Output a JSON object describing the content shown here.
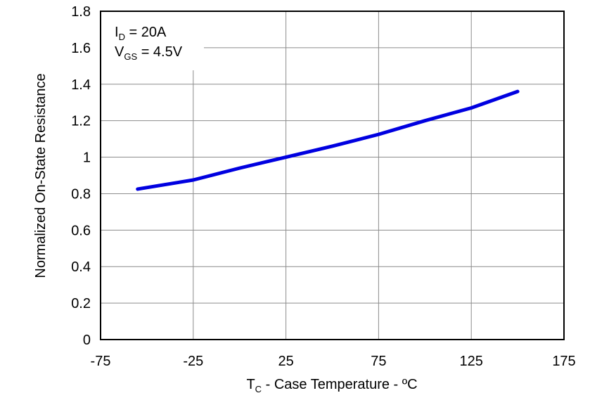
{
  "chart_data": {
    "type": "line",
    "annotations": [
      {
        "main": "I",
        "sub": "D",
        "rest": " = 20A"
      },
      {
        "main": "V",
        "sub": "GS",
        "rest": " = 4.5V"
      }
    ],
    "xlabel": {
      "main": "T",
      "sub": "C",
      "rest": " - Case Temperature - ºC"
    },
    "ylabel": "Normalized On-State Resistance",
    "x": [
      -55,
      -25,
      0,
      25,
      50,
      75,
      100,
      125,
      150
    ],
    "series": [
      {
        "color": "#0000e0",
        "values": [
          0.825,
          0.875,
          0.94,
          1.0,
          1.06,
          1.125,
          1.2,
          1.27,
          1.36
        ]
      }
    ],
    "xlim": [
      -75,
      175
    ],
    "xticks": [
      -75,
      -25,
      25,
      75,
      125,
      175
    ],
    "ylim": [
      0,
      1.8
    ],
    "yticks": [
      0,
      0.2,
      0.4,
      0.6,
      0.8,
      1,
      1.2,
      1.4,
      1.6,
      1.8
    ],
    "grid": true
  }
}
